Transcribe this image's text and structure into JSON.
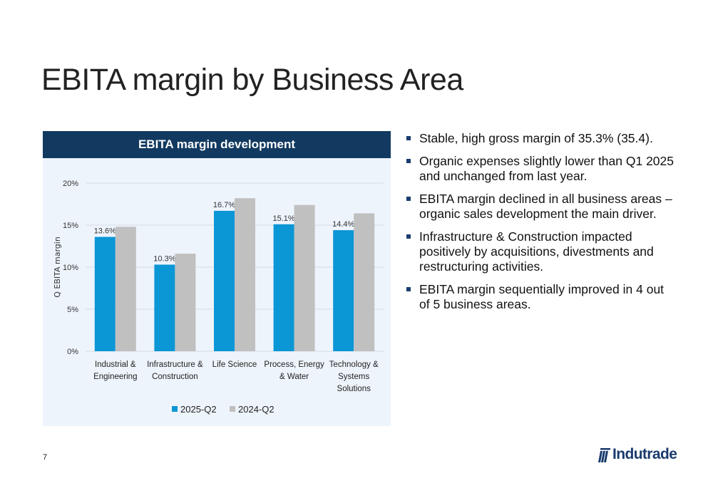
{
  "slide": {
    "title": "EBITA margin by Business Area",
    "page_number": "7",
    "logo_text": "Indutrade"
  },
  "chart_panel": {
    "header": "EBITA margin development"
  },
  "bullets": [
    "Stable, high gross margin of 35.3% (35.4).",
    "Organic expenses slightly lower than Q1 2025 and unchanged from last year.",
    "EBITA margin declined in all business areas – organic sales development the main driver.",
    "Infrastructure & Construction impacted positively by acquisitions, divestments and restructuring activities.",
    "EBITA margin sequentially improved in 4 out of 5 business areas."
  ],
  "colors": {
    "series_2025": "#0b96d6",
    "series_2024": "#c0c0c0",
    "header_bg": "#123a60",
    "panel_bg": "#eef4fc",
    "brand": "#1a3b6e"
  },
  "chart_data": {
    "type": "bar",
    "ylabel": "Q EBITA margin",
    "ylim": [
      0,
      20
    ],
    "yticks": [
      0,
      5,
      10,
      15,
      20
    ],
    "ytick_labels": [
      "0%",
      "5%",
      "10%",
      "15%",
      "20%"
    ],
    "grid": true,
    "legend": "bottom",
    "categories": [
      [
        "Industrial &",
        "Engineering"
      ],
      [
        "Infrastructure &",
        "Construction"
      ],
      [
        "Life Science"
      ],
      [
        "Process, Energy",
        "& Water"
      ],
      [
        "Technology &",
        "Systems",
        "Solutions"
      ]
    ],
    "series": [
      {
        "name": "2025-Q2",
        "values": [
          13.6,
          10.3,
          16.7,
          15.1,
          14.4
        ],
        "labels": [
          "13.6%",
          "10.3%",
          "16.7%",
          "15.1%",
          "14.4%"
        ]
      },
      {
        "name": "2024-Q2",
        "values": [
          14.8,
          11.6,
          18.2,
          17.4,
          16.4
        ]
      }
    ]
  }
}
